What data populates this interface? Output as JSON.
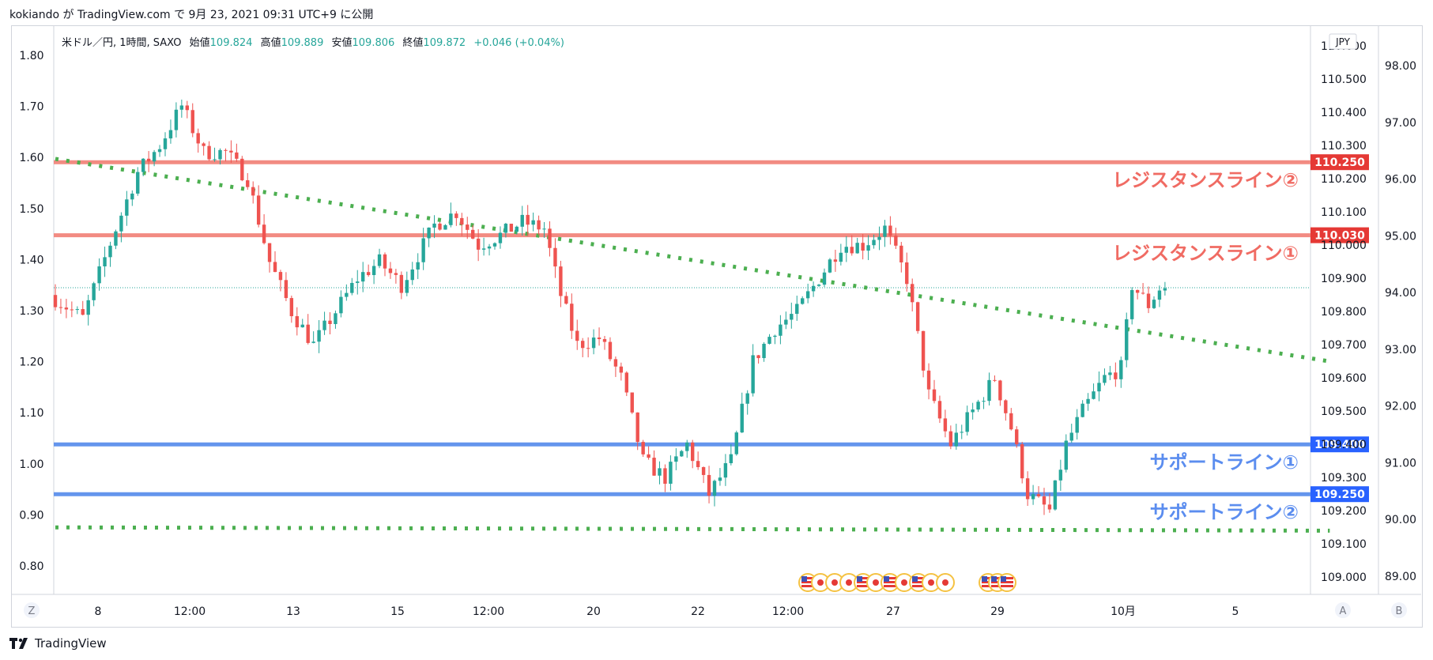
{
  "header": {
    "publish_line": "kokiando が TradingView.com で 9月 23, 2021 09:31 UTC+9 に公開"
  },
  "legend": {
    "symbol": "米ドル／円, 1時間, SAXO",
    "open_label": "始値",
    "open": "109.824",
    "high_label": "高値",
    "high": "109.889",
    "low_label": "安値",
    "low": "109.806",
    "close_label": "終値",
    "close": "109.872",
    "change": "+0.046 (+0.04%)"
  },
  "footer": {
    "brand": "TradingView"
  },
  "colors": {
    "up": "#26a69a",
    "down": "#ef5350",
    "resistance": "#f28b82",
    "resistance_tag": "#e53935",
    "support": "#6495ed",
    "support_tag": "#2962ff",
    "trendline": "#4caf50",
    "resistance_text": "#f06b63",
    "support_text": "#5b8def"
  },
  "chart_data": {
    "type": "candlestick",
    "symbol": "USD/JPY",
    "timeframe": "1H",
    "y_right": {
      "currency": "JPY",
      "ticks": [
        109.0,
        109.1,
        109.2,
        109.3,
        109.4,
        109.5,
        109.6,
        109.7,
        109.8,
        109.9,
        110.0,
        110.1,
        110.2,
        110.3,
        110.4,
        110.5,
        110.6
      ],
      "range": [
        108.96,
        110.66
      ]
    },
    "y_left": {
      "ticks": [
        0.8,
        0.9,
        1.0,
        1.1,
        1.2,
        1.3,
        1.4,
        1.5,
        1.6,
        1.7,
        1.8
      ]
    },
    "y_far_right": {
      "ticks": [
        89.0,
        90.0,
        91.0,
        92.0,
        93.0,
        94.0,
        95.0,
        96.0,
        97.0,
        98.0
      ]
    },
    "x_ticks": [
      "8",
      "12:00",
      "13",
      "15",
      "12:00",
      "20",
      "22",
      "12:00",
      "27",
      "29",
      "10月",
      "5"
    ],
    "scale_buttons": {
      "left": "Z",
      "a": "A",
      "b": "B"
    },
    "horizontal_lines": [
      {
        "name": "レジスタンスライン②",
        "price": 110.25,
        "tag": "110.250",
        "kind": "resistance"
      },
      {
        "name": "レジスタンスライン①",
        "price": 110.03,
        "tag": "110.030",
        "kind": "resistance"
      },
      {
        "name": "サポートライン①",
        "price": 109.4,
        "tag": "109.400",
        "kind": "support"
      },
      {
        "name": "サポートライン②",
        "price": 109.25,
        "tag": "109.250",
        "kind": "support"
      }
    ],
    "trendlines": [
      {
        "style": "dotted",
        "from": {
          "bar": 0,
          "price": 110.26
        },
        "to": {
          "bar": 232,
          "price": 109.65
        }
      },
      {
        "style": "dotted",
        "from": {
          "bar": 0,
          "price": 109.15
        },
        "to": {
          "bar": 232,
          "price": 109.14
        }
      }
    ],
    "last_price_line": 109.872,
    "anchors": [
      {
        "bar": 0,
        "price": 109.85
      },
      {
        "bar": 6,
        "price": 109.78
      },
      {
        "bar": 12,
        "price": 110.05
      },
      {
        "bar": 16,
        "price": 110.22
      },
      {
        "bar": 20,
        "price": 110.3
      },
      {
        "bar": 24,
        "price": 110.42
      },
      {
        "bar": 28,
        "price": 110.28
      },
      {
        "bar": 32,
        "price": 110.28
      },
      {
        "bar": 36,
        "price": 110.2
      },
      {
        "bar": 40,
        "price": 109.95
      },
      {
        "bar": 44,
        "price": 109.8
      },
      {
        "bar": 48,
        "price": 109.7
      },
      {
        "bar": 52,
        "price": 109.8
      },
      {
        "bar": 56,
        "price": 109.9
      },
      {
        "bar": 60,
        "price": 109.95
      },
      {
        "bar": 64,
        "price": 109.88
      },
      {
        "bar": 70,
        "price": 110.06
      },
      {
        "bar": 74,
        "price": 110.1
      },
      {
        "bar": 78,
        "price": 110.0
      },
      {
        "bar": 82,
        "price": 110.03
      },
      {
        "bar": 86,
        "price": 110.07
      },
      {
        "bar": 90,
        "price": 110.05
      },
      {
        "bar": 93,
        "price": 109.85
      },
      {
        "bar": 96,
        "price": 109.7
      },
      {
        "bar": 100,
        "price": 109.72
      },
      {
        "bar": 104,
        "price": 109.6
      },
      {
        "bar": 108,
        "price": 109.35
      },
      {
        "bar": 112,
        "price": 109.3
      },
      {
        "bar": 116,
        "price": 109.4
      },
      {
        "bar": 120,
        "price": 109.25
      },
      {
        "bar": 124,
        "price": 109.35
      },
      {
        "bar": 128,
        "price": 109.65
      },
      {
        "bar": 132,
        "price": 109.75
      },
      {
        "bar": 136,
        "price": 109.8
      },
      {
        "bar": 140,
        "price": 109.9
      },
      {
        "bar": 144,
        "price": 110.0
      },
      {
        "bar": 148,
        "price": 110.0
      },
      {
        "bar": 152,
        "price": 110.05
      },
      {
        "bar": 156,
        "price": 109.9
      },
      {
        "bar": 160,
        "price": 109.55
      },
      {
        "bar": 164,
        "price": 109.4
      },
      {
        "bar": 168,
        "price": 109.5
      },
      {
        "bar": 172,
        "price": 109.6
      },
      {
        "bar": 175,
        "price": 109.45
      },
      {
        "bar": 178,
        "price": 109.25
      },
      {
        "bar": 182,
        "price": 109.2
      },
      {
        "bar": 185,
        "price": 109.4
      },
      {
        "bar": 188,
        "price": 109.5
      },
      {
        "bar": 192,
        "price": 109.6
      },
      {
        "bar": 195,
        "price": 109.63
      },
      {
        "bar": 197,
        "price": 109.88
      },
      {
        "bar": 200,
        "price": 109.82
      },
      {
        "bar": 202,
        "price": 109.87
      }
    ]
  }
}
